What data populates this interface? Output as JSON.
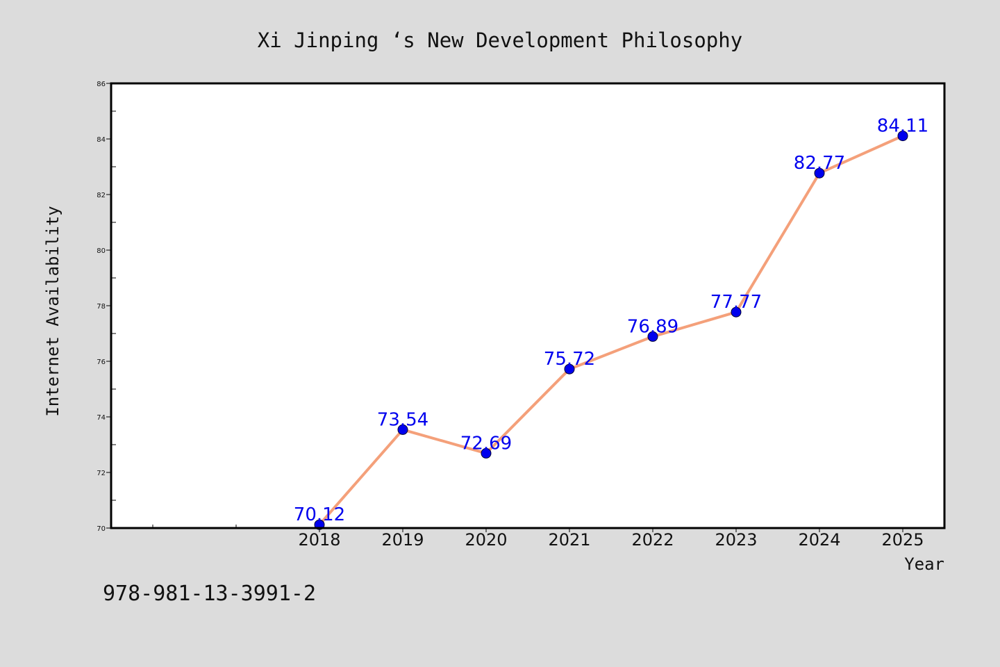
{
  "chart_data": {
    "type": "line",
    "title": "Xi Jinping ‘s New Development Philosophy",
    "xlabel": "Year",
    "ylabel": "Internet Availability",
    "categories": [
      "2018",
      "2019",
      "2020",
      "2021",
      "2022",
      "2023",
      "2024",
      "2025"
    ],
    "series": [
      {
        "values": [
          70.12,
          73.54,
          72.69,
          75.72,
          76.89,
          77.77,
          82.77,
          84.11
        ],
        "labels": [
          "70.12",
          "73.54",
          "72.69",
          "75.72",
          "76.89",
          "77.77",
          "82.77",
          "84.11"
        ],
        "line_color": "#f4a07a",
        "marker_color": "#0000ee"
      }
    ],
    "ylim": [
      70,
      86
    ],
    "yticks": [
      "70",
      "72",
      "74",
      "76",
      "78",
      "80",
      "82",
      "84",
      "86"
    ],
    "grid": false,
    "legend": "none"
  },
  "footer": {
    "isbn": "978-981-13-3991-2"
  },
  "colors": {
    "background": "#dcdcdc",
    "plot_background": "#ffffff",
    "label_color": "#0000ee"
  }
}
